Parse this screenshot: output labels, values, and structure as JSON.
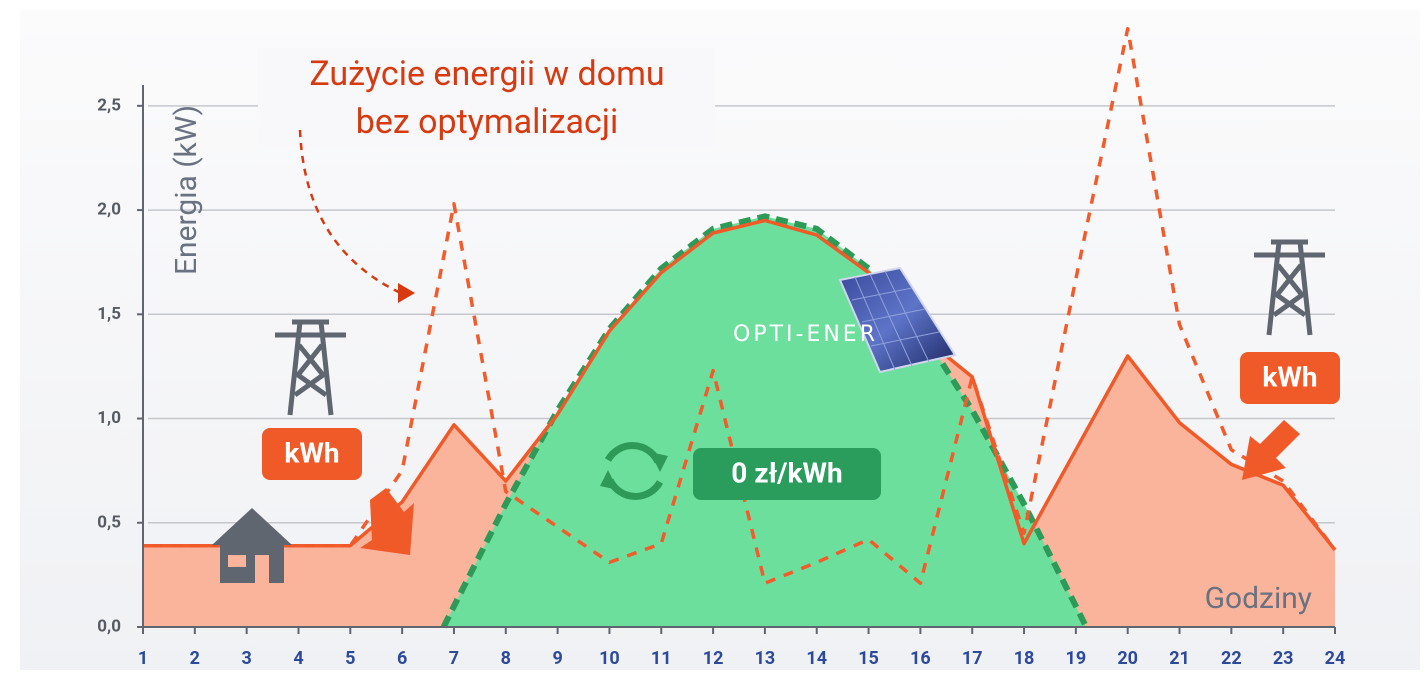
{
  "chart_data": {
    "type": "line",
    "y_label": "Energia (kW)",
    "x_label": "Godziny",
    "annotation": [
      "Zużycie energii w domu",
      "bez optymalizacji"
    ],
    "badges": [
      "kWh",
      "kWh",
      "0 zł/kWh"
    ],
    "logo": "OPTI-ENER",
    "x": [
      1,
      2,
      3,
      4,
      5,
      6,
      7,
      8,
      9,
      10,
      11,
      12,
      13,
      14,
      15,
      16,
      17,
      18,
      19,
      20,
      21,
      22,
      23,
      24
    ],
    "xlim": [
      1,
      24
    ],
    "xticks": [
      1,
      2,
      3,
      4,
      5,
      6,
      7,
      8,
      9,
      10,
      11,
      12,
      13,
      14,
      15,
      16,
      17,
      18,
      19,
      20,
      21,
      22,
      23,
      24
    ],
    "ylim": [
      0,
      2.6
    ],
    "yticks": [
      {
        "value": 0,
        "label": "0,0"
      },
      {
        "value": 0.5,
        "label": "0,5"
      },
      {
        "value": 1,
        "label": "1,0"
      },
      {
        "value": 1.5,
        "label": "1,5"
      },
      {
        "value": 2,
        "label": "2,0"
      },
      {
        "value": 2.5,
        "label": "2,5"
      }
    ],
    "grid": true,
    "series": [
      {
        "color": "#f05a28",
        "fill": "#fbb49c",
        "style": "solid",
        "values": [
          0.39,
          0.39,
          0.39,
          0.39,
          0.39,
          0.6,
          0.97,
          0.7,
          1.02,
          1.42,
          1.7,
          1.89,
          1.95,
          1.88,
          1.7,
          1.4,
          1.2,
          0.4,
          0.85,
          1.3,
          0.98,
          0.78,
          0.68,
          0.37
        ]
      },
      {
        "color": "#f25c2c",
        "style": "dashed",
        "values": [
          0.39,
          0.39,
          0.39,
          0.39,
          0.39,
          0.75,
          2.03,
          0.65,
          0.48,
          0.31,
          0.4,
          1.23,
          0.21,
          0.31,
          0.42,
          0.21,
          1.2,
          0.45,
          1.67,
          2.87,
          1.45,
          0.85,
          0.7,
          0.37
        ]
      },
      {
        "color": "#2e9a58",
        "fill": "#6ddf9c",
        "style": "dashed",
        "x": [
          6.8,
          7,
          8,
          9,
          10,
          11,
          12,
          13,
          14,
          15,
          16,
          17,
          18,
          19,
          19.2
        ],
        "values": [
          0,
          0.1,
          0.59,
          1.04,
          1.43,
          1.72,
          1.91,
          1.97,
          1.91,
          1.72,
          1.43,
          1.04,
          0.59,
          0.1,
          0
        ]
      }
    ]
  }
}
